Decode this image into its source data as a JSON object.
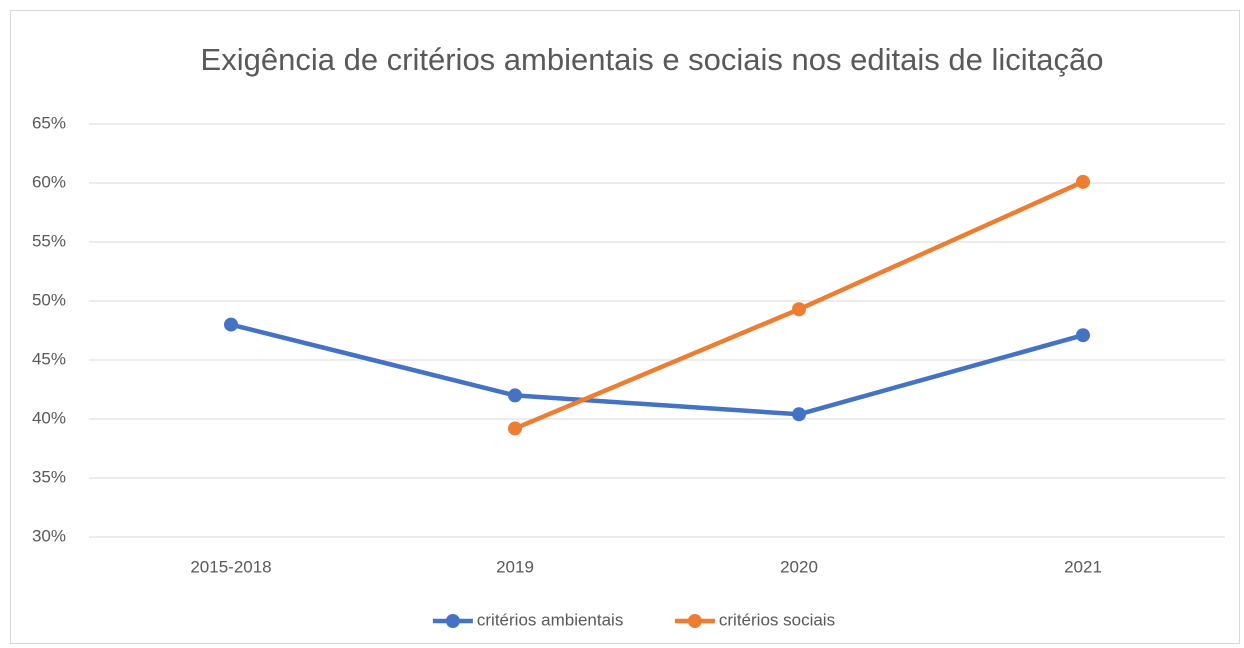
{
  "chart_data": {
    "type": "line",
    "title": "Exigência de critérios ambientais e sociais nos editais de licitação",
    "categories": [
      "2015-2018",
      "2019",
      "2020",
      "2021"
    ],
    "series": [
      {
        "name": "critérios ambientais",
        "color": "#4472c4",
        "values": [
          48,
          42,
          40.4,
          47.1
        ]
      },
      {
        "name": "critérios sociais",
        "color": "#ed7d31",
        "values": [
          null,
          39.2,
          49.3,
          60.1
        ]
      }
    ],
    "ylim": [
      30,
      65
    ],
    "yticks": [
      {
        "value": 30,
        "label": "30%"
      },
      {
        "value": 35,
        "label": "35%"
      },
      {
        "value": 40,
        "label": "40%"
      },
      {
        "value": 45,
        "label": "45%"
      },
      {
        "value": 50,
        "label": "50%"
      },
      {
        "value": 55,
        "label": "55%"
      },
      {
        "value": 60,
        "label": "60%"
      },
      {
        "value": 65,
        "label": "65%"
      }
    ],
    "grid": true,
    "legend": "bottom"
  }
}
